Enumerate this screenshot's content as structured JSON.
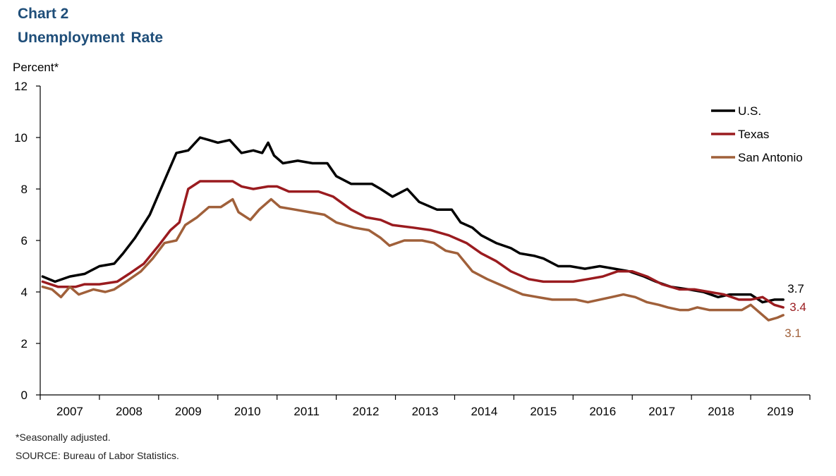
{
  "header": {
    "chart_number": "Chart 2",
    "title": "Unemployment Rate"
  },
  "footer": {
    "note": "*Seasonally adjusted.",
    "source": "SOURCE:  Bureau of Labor Statistics."
  },
  "chart_data": {
    "type": "line",
    "title": "Unemployment Rate",
    "ylabel": "Percent*",
    "xlabel": "",
    "ylim": [
      0,
      12
    ],
    "yticks": [
      0,
      2,
      4,
      6,
      8,
      10,
      12
    ],
    "xlim": [
      2007.0,
      2020.0
    ],
    "xtick_labels": [
      "2007",
      "2008",
      "2009",
      "2010",
      "2011",
      "2012",
      "2013",
      "2014",
      "2015",
      "2016",
      "2017",
      "2018",
      "2019"
    ],
    "grid": false,
    "legend_position": "top-right",
    "series": [
      {
        "name": "U.S.",
        "color": "#000000",
        "end_label": "3.7",
        "points": [
          [
            2007.04,
            4.6
          ],
          [
            2007.25,
            4.4
          ],
          [
            2007.5,
            4.6
          ],
          [
            2007.75,
            4.7
          ],
          [
            2008.0,
            5.0
          ],
          [
            2008.25,
            5.1
          ],
          [
            2008.4,
            5.5
          ],
          [
            2008.6,
            6.1
          ],
          [
            2008.85,
            7.0
          ],
          [
            2009.0,
            7.8
          ],
          [
            2009.15,
            8.6
          ],
          [
            2009.3,
            9.4
          ],
          [
            2009.5,
            9.5
          ],
          [
            2009.7,
            10.0
          ],
          [
            2009.85,
            9.9
          ],
          [
            2010.0,
            9.8
          ],
          [
            2010.2,
            9.9
          ],
          [
            2010.4,
            9.4
          ],
          [
            2010.6,
            9.5
          ],
          [
            2010.75,
            9.4
          ],
          [
            2010.85,
            9.8
          ],
          [
            2010.95,
            9.3
          ],
          [
            2011.1,
            9.0
          ],
          [
            2011.35,
            9.1
          ],
          [
            2011.6,
            9.0
          ],
          [
            2011.85,
            9.0
          ],
          [
            2012.0,
            8.5
          ],
          [
            2012.25,
            8.2
          ],
          [
            2012.6,
            8.2
          ],
          [
            2012.75,
            8.0
          ],
          [
            2012.95,
            7.7
          ],
          [
            2013.2,
            8.0
          ],
          [
            2013.4,
            7.5
          ],
          [
            2013.7,
            7.2
          ],
          [
            2013.95,
            7.2
          ],
          [
            2014.1,
            6.7
          ],
          [
            2014.3,
            6.5
          ],
          [
            2014.45,
            6.2
          ],
          [
            2014.7,
            5.9
          ],
          [
            2014.95,
            5.7
          ],
          [
            2015.1,
            5.5
          ],
          [
            2015.35,
            5.4
          ],
          [
            2015.5,
            5.3
          ],
          [
            2015.75,
            5.0
          ],
          [
            2015.95,
            5.0
          ],
          [
            2016.2,
            4.9
          ],
          [
            2016.45,
            5.0
          ],
          [
            2016.7,
            4.9
          ],
          [
            2016.95,
            4.8
          ],
          [
            2017.2,
            4.6
          ],
          [
            2017.4,
            4.4
          ],
          [
            2017.65,
            4.2
          ],
          [
            2017.95,
            4.1
          ],
          [
            2018.2,
            4.0
          ],
          [
            2018.45,
            3.8
          ],
          [
            2018.65,
            3.9
          ],
          [
            2018.85,
            3.9
          ],
          [
            2019.0,
            3.9
          ],
          [
            2019.2,
            3.6
          ],
          [
            2019.4,
            3.7
          ],
          [
            2019.55,
            3.7
          ]
        ]
      },
      {
        "name": "Texas",
        "color": "#9a1b1f",
        "end_label": "3.4",
        "points": [
          [
            2007.04,
            4.4
          ],
          [
            2007.3,
            4.2
          ],
          [
            2007.6,
            4.2
          ],
          [
            2007.75,
            4.3
          ],
          [
            2008.0,
            4.3
          ],
          [
            2008.3,
            4.4
          ],
          [
            2008.5,
            4.7
          ],
          [
            2008.75,
            5.1
          ],
          [
            2009.0,
            5.8
          ],
          [
            2009.2,
            6.4
          ],
          [
            2009.35,
            6.7
          ],
          [
            2009.5,
            8.0
          ],
          [
            2009.7,
            8.3
          ],
          [
            2009.95,
            8.3
          ],
          [
            2010.25,
            8.3
          ],
          [
            2010.4,
            8.1
          ],
          [
            2010.6,
            8.0
          ],
          [
            2010.85,
            8.1
          ],
          [
            2011.0,
            8.1
          ],
          [
            2011.2,
            7.9
          ],
          [
            2011.5,
            7.9
          ],
          [
            2011.7,
            7.9
          ],
          [
            2011.95,
            7.7
          ],
          [
            2012.25,
            7.2
          ],
          [
            2012.5,
            6.9
          ],
          [
            2012.75,
            6.8
          ],
          [
            2012.95,
            6.6
          ],
          [
            2013.3,
            6.5
          ],
          [
            2013.6,
            6.4
          ],
          [
            2013.9,
            6.2
          ],
          [
            2014.2,
            5.9
          ],
          [
            2014.45,
            5.5
          ],
          [
            2014.7,
            5.2
          ],
          [
            2014.95,
            4.8
          ],
          [
            2015.25,
            4.5
          ],
          [
            2015.5,
            4.4
          ],
          [
            2015.75,
            4.4
          ],
          [
            2016.0,
            4.4
          ],
          [
            2016.25,
            4.5
          ],
          [
            2016.5,
            4.6
          ],
          [
            2016.75,
            4.8
          ],
          [
            2017.0,
            4.8
          ],
          [
            2017.25,
            4.6
          ],
          [
            2017.5,
            4.3
          ],
          [
            2017.8,
            4.1
          ],
          [
            2018.05,
            4.1
          ],
          [
            2018.3,
            4.0
          ],
          [
            2018.55,
            3.9
          ],
          [
            2018.8,
            3.7
          ],
          [
            2019.0,
            3.7
          ],
          [
            2019.2,
            3.8
          ],
          [
            2019.4,
            3.5
          ],
          [
            2019.55,
            3.4
          ]
        ]
      },
      {
        "name": "San Antonio",
        "color": "#a0603a",
        "end_label": "3.1",
        "points": [
          [
            2007.04,
            4.2
          ],
          [
            2007.2,
            4.1
          ],
          [
            2007.35,
            3.8
          ],
          [
            2007.5,
            4.2
          ],
          [
            2007.65,
            3.9
          ],
          [
            2007.9,
            4.1
          ],
          [
            2008.1,
            4.0
          ],
          [
            2008.25,
            4.1
          ],
          [
            2008.45,
            4.4
          ],
          [
            2008.7,
            4.8
          ],
          [
            2008.9,
            5.3
          ],
          [
            2009.1,
            5.9
          ],
          [
            2009.3,
            6.0
          ],
          [
            2009.45,
            6.6
          ],
          [
            2009.65,
            6.9
          ],
          [
            2009.85,
            7.3
          ],
          [
            2010.05,
            7.3
          ],
          [
            2010.25,
            7.6
          ],
          [
            2010.35,
            7.1
          ],
          [
            2010.55,
            6.8
          ],
          [
            2010.7,
            7.2
          ],
          [
            2010.9,
            7.6
          ],
          [
            2011.05,
            7.3
          ],
          [
            2011.3,
            7.2
          ],
          [
            2011.55,
            7.1
          ],
          [
            2011.8,
            7.0
          ],
          [
            2012.0,
            6.7
          ],
          [
            2012.3,
            6.5
          ],
          [
            2012.55,
            6.4
          ],
          [
            2012.75,
            6.1
          ],
          [
            2012.9,
            5.8
          ],
          [
            2013.15,
            6.0
          ],
          [
            2013.45,
            6.0
          ],
          [
            2013.65,
            5.9
          ],
          [
            2013.85,
            5.6
          ],
          [
            2014.05,
            5.5
          ],
          [
            2014.3,
            4.8
          ],
          [
            2014.55,
            4.5
          ],
          [
            2014.75,
            4.3
          ],
          [
            2014.95,
            4.1
          ],
          [
            2015.15,
            3.9
          ],
          [
            2015.4,
            3.8
          ],
          [
            2015.65,
            3.7
          ],
          [
            2015.85,
            3.7
          ],
          [
            2016.05,
            3.7
          ],
          [
            2016.25,
            3.6
          ],
          [
            2016.45,
            3.7
          ],
          [
            2016.65,
            3.8
          ],
          [
            2016.85,
            3.9
          ],
          [
            2017.05,
            3.8
          ],
          [
            2017.25,
            3.6
          ],
          [
            2017.45,
            3.5
          ],
          [
            2017.6,
            3.4
          ],
          [
            2017.8,
            3.3
          ],
          [
            2017.95,
            3.3
          ],
          [
            2018.1,
            3.4
          ],
          [
            2018.3,
            3.3
          ],
          [
            2018.5,
            3.3
          ],
          [
            2018.7,
            3.3
          ],
          [
            2018.85,
            3.3
          ],
          [
            2019.0,
            3.5
          ],
          [
            2019.15,
            3.2
          ],
          [
            2019.3,
            2.9
          ],
          [
            2019.45,
            3.0
          ],
          [
            2019.55,
            3.1
          ]
        ]
      }
    ]
  }
}
